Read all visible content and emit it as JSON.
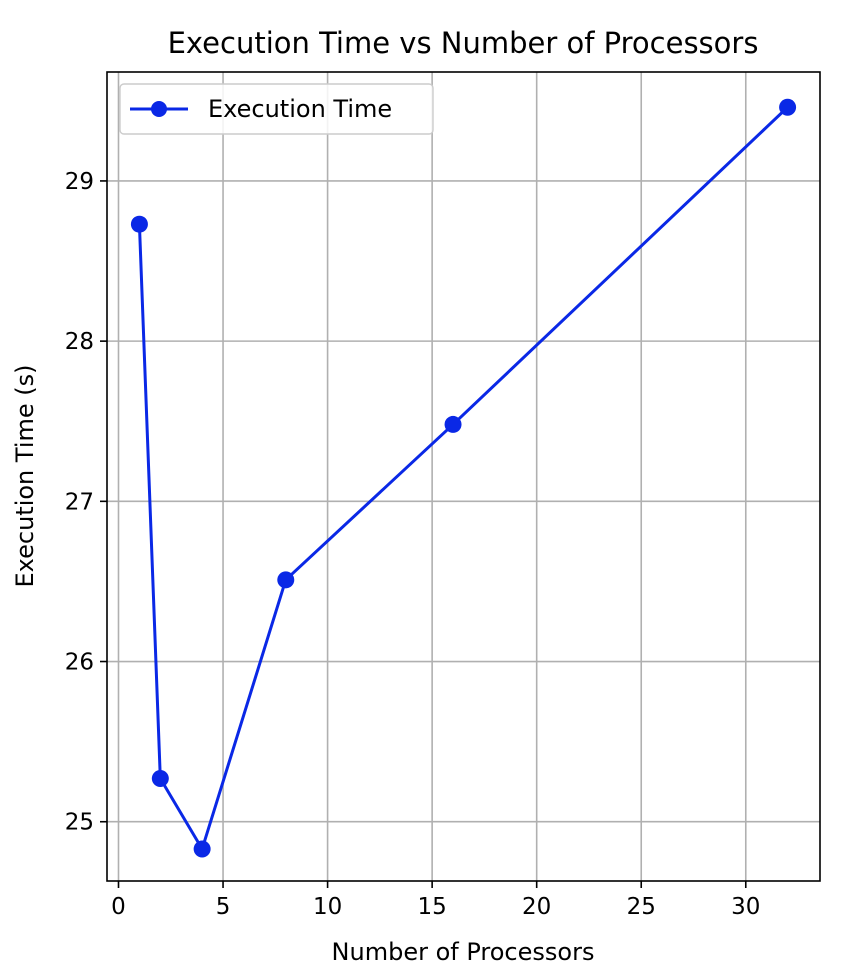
{
  "chart_data": {
    "type": "line",
    "title": "Execution Time vs Number of Processors",
    "xlabel": "Number of Processors",
    "ylabel": "Execution Time (s)",
    "xlim": [
      -0.55,
      33.55
    ],
    "ylim": [
      24.63,
      29.68
    ],
    "xticks": [
      0,
      5,
      10,
      15,
      20,
      25,
      30
    ],
    "yticks": [
      25,
      26,
      27,
      28,
      29
    ],
    "grid": true,
    "legend_position": "top-left",
    "series": [
      {
        "name": "Execution Time",
        "color": "#0a28e6",
        "marker": "circle",
        "x": [
          1,
          2,
          4,
          8,
          16,
          32
        ],
        "y": [
          28.73,
          25.27,
          24.83,
          26.51,
          27.48,
          29.46
        ]
      }
    ]
  }
}
